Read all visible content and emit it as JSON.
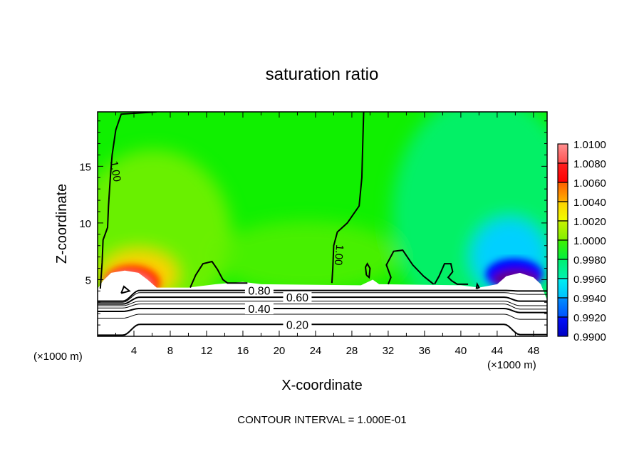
{
  "chart_data": {
    "type": "heatmap",
    "title": "saturation ratio",
    "xlabel": "X-coordinate",
    "ylabel": "Z-coordinate",
    "x_unit_left": "(×1000 m)",
    "x_unit_right": "(×1000 m)",
    "footer": "CONTOUR INTERVAL = 1.000E-01",
    "xlim": [
      0,
      49.5
    ],
    "ylim": [
      0,
      19.8
    ],
    "xticks": [
      4,
      8,
      12,
      16,
      20,
      24,
      28,
      32,
      36,
      40,
      44,
      48
    ],
    "xtick_labels": [
      "4",
      "8",
      "12",
      "16",
      "20",
      "24",
      "28",
      "32",
      "36",
      "40",
      "44",
      "48"
    ],
    "yticks": [
      5,
      10,
      15
    ],
    "ytick_labels": [
      "5",
      "10",
      "15"
    ],
    "colorbar": {
      "levels": [
        "1.0100",
        "1.0080",
        "1.0060",
        "1.0040",
        "1.0020",
        "1.0000",
        "0.9980",
        "0.9960",
        "0.9940",
        "0.9920",
        "0.9900"
      ],
      "colors": [
        [
          "#ff9090",
          "#ff5050"
        ],
        [
          "#ff2020",
          "#ff0000"
        ],
        [
          "#ff6000",
          "#ffb000"
        ],
        [
          "#ffd000",
          "#f0ff00"
        ],
        [
          "#c8f000",
          "#80f000"
        ],
        [
          "#40f000",
          "#00f040"
        ],
        [
          "#00f070",
          "#00f0b0"
        ],
        [
          "#00f0f0",
          "#00c0ff"
        ],
        [
          "#0090ff",
          "#0050ff"
        ],
        [
          "#0010ff",
          "#0000c0"
        ],
        [
          "#000090",
          "#600090"
        ]
      ]
    },
    "field_background": "#10f000",
    "contours": [
      {
        "label": "1.00",
        "label_at": [
          1.6,
          14.5
        ],
        "label_rot": 80,
        "points": [
          [
            0.3,
            4.2
          ],
          [
            0.5,
            6.5
          ],
          [
            0.6,
            8.5
          ],
          [
            1.1,
            9.6
          ],
          [
            1.2,
            11.5
          ],
          [
            1.4,
            14
          ],
          [
            1.6,
            16
          ],
          [
            2.0,
            18.2
          ],
          [
            2.6,
            19.6
          ],
          [
            6.5,
            19.8
          ]
        ]
      },
      {
        "label": "1.00",
        "label_at": [
          26.2,
          7.2
        ],
        "label_rot": 95,
        "points": [
          [
            29.3,
            19.8
          ],
          [
            29.2,
            17
          ],
          [
            29.1,
            14
          ],
          [
            28.8,
            11.5
          ],
          [
            27.5,
            10
          ],
          [
            26.4,
            9.2
          ],
          [
            26.0,
            8
          ],
          [
            25.9,
            6
          ],
          [
            25.8,
            4.7
          ]
        ]
      },
      {
        "label": "",
        "points": [
          [
            10.2,
            4.3
          ],
          [
            10.8,
            5.4
          ],
          [
            11.6,
            6.4
          ],
          [
            12.6,
            6.6
          ],
          [
            13.2,
            5.9
          ],
          [
            13.8,
            5
          ],
          [
            14.3,
            4.7
          ],
          [
            16.5,
            4.7
          ]
        ]
      },
      {
        "label": "",
        "points": [
          [
            32.0,
            4.6
          ],
          [
            32.3,
            5.2
          ],
          [
            31.8,
            6.3
          ],
          [
            32.6,
            7.5
          ],
          [
            33.6,
            7.6
          ],
          [
            34.7,
            6.3
          ],
          [
            35.9,
            5.3
          ],
          [
            37.0,
            4.6
          ]
        ]
      },
      {
        "label": "",
        "points": [
          [
            29.6,
            5.4
          ],
          [
            29.9,
            5.2
          ],
          [
            30.0,
            6.0
          ],
          [
            29.7,
            6.4
          ],
          [
            29.5,
            6.1
          ],
          [
            29.6,
            5.4
          ]
        ]
      },
      {
        "label": "",
        "points": [
          [
            37.1,
            4.6
          ],
          [
            37.6,
            5.3
          ],
          [
            38.2,
            6.4
          ],
          [
            38.9,
            6.4
          ],
          [
            39.1,
            5.7
          ],
          [
            38.6,
            5.2
          ],
          [
            39.0,
            4.9
          ],
          [
            39.6,
            4.6
          ],
          [
            40.8,
            4.6
          ]
        ]
      },
      {
        "label": "",
        "points": [
          [
            41.7,
            4.2
          ],
          [
            41.8,
            4.6
          ],
          [
            42.0,
            4.3
          ],
          [
            41.7,
            4.2
          ]
        ]
      },
      {
        "label": "",
        "points": [
          [
            2.6,
            3.8
          ],
          [
            2.9,
            4.4
          ],
          [
            3.5,
            4.0
          ],
          [
            2.6,
            3.8
          ]
        ]
      }
    ],
    "layer_contours": [
      {
        "label": "0.80",
        "base": 4.05,
        "low": 3.1,
        "right": 4.0
      },
      {
        "label": "",
        "base": 3.85,
        "low": 3.0,
        "right": 3.7
      },
      {
        "label": "0.60",
        "base": 3.45,
        "low": 2.85,
        "right": 3.1
      },
      {
        "label": "",
        "base": 3.1,
        "low": 2.7,
        "right": 2.7
      },
      {
        "label": "",
        "base": 2.85,
        "low": 2.5,
        "right": 2.4
      },
      {
        "label": "0.40",
        "base": 2.45,
        "low": 2.2,
        "right": 2.1
      },
      {
        "label": "",
        "base": 1.95,
        "low": 1.6,
        "right": 1.5
      },
      {
        "label": "0.20",
        "base": 1.05,
        "low": 0.1,
        "right": 0.15
      }
    ]
  }
}
